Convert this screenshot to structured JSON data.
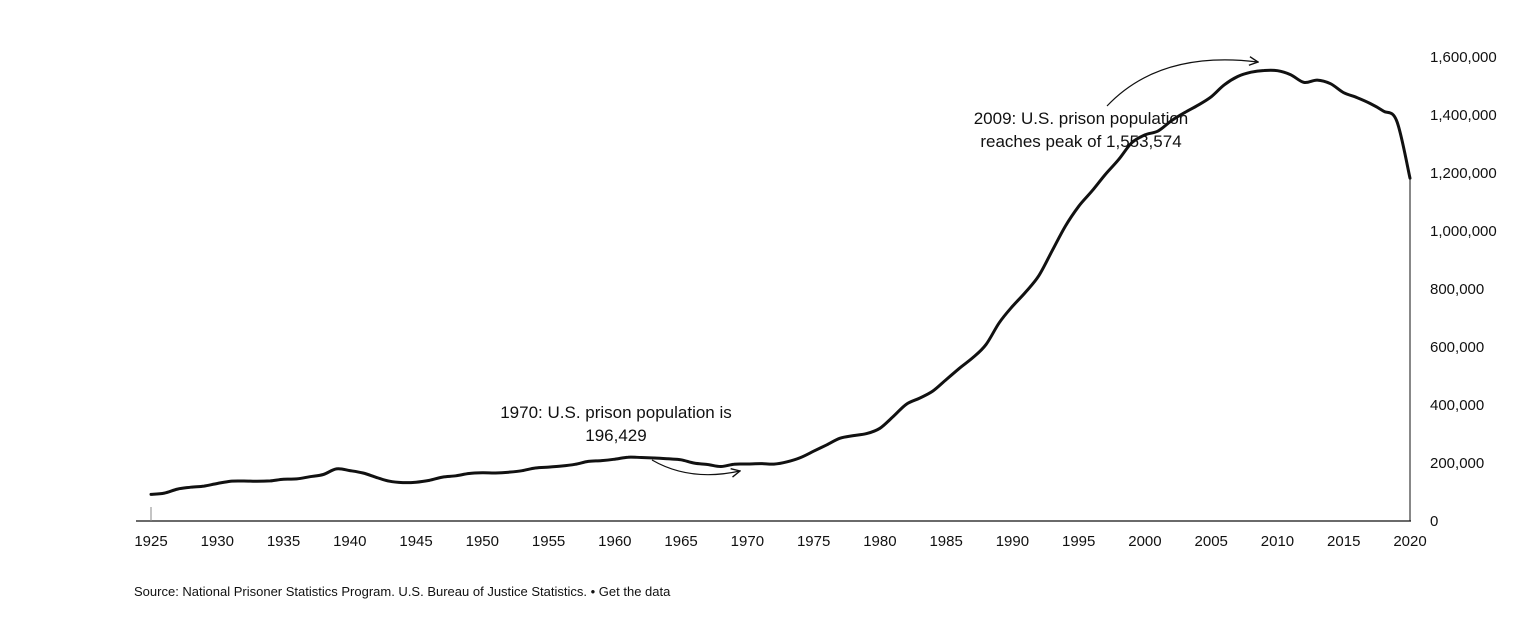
{
  "chart_data": {
    "type": "line",
    "x": [
      1925,
      1926,
      1927,
      1928,
      1929,
      1930,
      1931,
      1932,
      1933,
      1934,
      1935,
      1936,
      1937,
      1938,
      1939,
      1940,
      1941,
      1942,
      1943,
      1944,
      1945,
      1946,
      1947,
      1948,
      1949,
      1950,
      1951,
      1952,
      1953,
      1954,
      1955,
      1956,
      1957,
      1958,
      1959,
      1960,
      1961,
      1962,
      1963,
      1964,
      1965,
      1966,
      1967,
      1968,
      1969,
      1970,
      1971,
      1972,
      1973,
      1974,
      1975,
      1976,
      1977,
      1978,
      1979,
      1980,
      1981,
      1982,
      1983,
      1984,
      1985,
      1986,
      1987,
      1988,
      1989,
      1990,
      1991,
      1992,
      1993,
      1994,
      1995,
      1996,
      1997,
      1998,
      1999,
      2000,
      2001,
      2002,
      2003,
      2004,
      2005,
      2006,
      2007,
      2008,
      2009,
      2010,
      2011,
      2012,
      2013,
      2014,
      2015,
      2016,
      2017,
      2018,
      2019,
      2020
    ],
    "series": [
      {
        "values": [
          91669,
          96125,
          109983,
          116390,
          120496,
          129453,
          137082,
          137997,
          136810,
          138316,
          144180,
          145038,
          152741,
          160285,
          179818,
          173706,
          165439,
          150384,
          137220,
          132456,
          133649,
          140079,
          151304,
          155977,
          163749,
          166123,
          165680,
          168233,
          173579,
          182901,
          185780,
          189565,
          195414,
          205643,
          208105,
          212953,
          220149,
          218830,
          217283,
          214336,
          210895,
          199654,
          194896,
          187914,
          196007,
          196429,
          198061,
          196183,
          204211,
          218466,
          240593,
          262833,
          285456,
          294396,
          301470,
          319598,
          360029,
          402914,
          423898,
          448264,
          487593,
          526436,
          562814,
          607766,
          683367,
          739980,
          789610,
          846277,
          932074,
          1016760,
          1085022,
          1137722,
          1194581,
          1245402,
          1304074,
          1331278,
          1345217,
          1380516,
          1408361,
          1433728,
          1462866,
          1504598,
          1532851,
          1547742,
          1553574,
          1552669,
          1538847,
          1512430,
          1520403,
          1507781,
          1476847,
          1459948,
          1439808,
          1413389,
          1379786,
          1182166
        ]
      }
    ],
    "xlim": [
      1925,
      2020
    ],
    "ylim": [
      0,
      1600000
    ],
    "x_ticks": [
      "1925",
      "1930",
      "1935",
      "1940",
      "1945",
      "1950",
      "1955",
      "1960",
      "1965",
      "1970",
      "1975",
      "1980",
      "1985",
      "1990",
      "1995",
      "2000",
      "2005",
      "2010",
      "2015",
      "2020"
    ],
    "y_ticks": [
      "0",
      "200,000",
      "400,000",
      "600,000",
      "800,000",
      "1,000,000",
      "1,200,000",
      "1,400,000",
      "1,600,000"
    ],
    "y_axis_position": "right",
    "grid": false,
    "annotations": [
      {
        "lines": [
          "1970: U.S. prison population is",
          "196,429"
        ],
        "x": 1970,
        "y": 196429
      },
      {
        "lines": [
          "2009: U.S. prison population",
          "reaches peak of 1,553,574"
        ],
        "x": 2009,
        "y": 1553574
      }
    ],
    "colors": {
      "line": "#111111",
      "text": "#111111",
      "background": "#ffffff"
    }
  },
  "footer": {
    "source": "Source: National Prisoner Statistics Program. U.S. Bureau of Justice Statistics.",
    "separator": " • ",
    "link": "Get the data"
  }
}
